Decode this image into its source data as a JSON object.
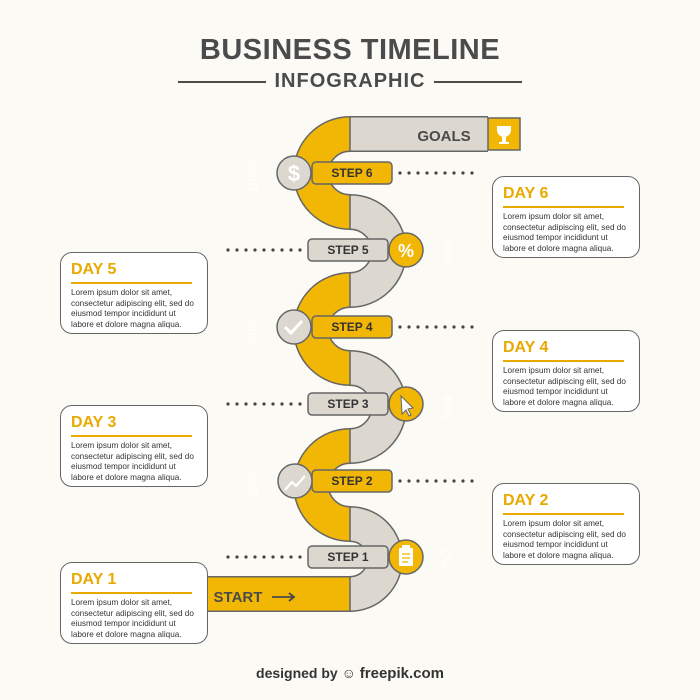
{
  "header": {
    "title": "BUSINESS TIMELINE",
    "subtitle": "INFOGRAPHIC"
  },
  "road": {
    "goals_label": "GOALS",
    "start_label": "START",
    "steps": [
      "STEP 1",
      "STEP 2",
      "STEP 3",
      "STEP 4",
      "STEP 5",
      "STEP 6"
    ],
    "percents": [
      "0%",
      "20%",
      "40%",
      "60%",
      "80%",
      "100%"
    ],
    "icons": [
      "clipboard-icon",
      "chart-icon",
      "cursor-icon",
      "checkmark-icon",
      "percent-icon",
      "dollar-icon"
    ]
  },
  "cards": [
    {
      "day": "DAY 1",
      "text": "Lorem ipsum dolor sit amet, consectetur adipiscing elit, sed do eiusmod tempor incididunt ut labore et dolore magna aliqua."
    },
    {
      "day": "DAY 2",
      "text": "Lorem ipsum dolor sit amet, consectetur adipiscing elit, sed do eiusmod tempor incididunt ut labore et dolore magna aliqua."
    },
    {
      "day": "DAY 3",
      "text": "Lorem ipsum dolor sit amet, consectetur adipiscing elit, sed do eiusmod tempor incididunt ut labore et dolore magna aliqua."
    },
    {
      "day": "DAY 4",
      "text": "Lorem ipsum dolor sit amet, consectetur adipiscing elit, sed do eiusmod tempor incididunt ut labore et dolore magna aliqua."
    },
    {
      "day": "DAY 5",
      "text": "Lorem ipsum dolor sit amet, consectetur adipiscing elit, sed do eiusmod tempor incididunt ut labore et dolore magna aliqua."
    },
    {
      "day": "DAY 6",
      "text": "Lorem ipsum dolor sit amet, consectetur adipiscing elit, sed do eiusmod tempor incididunt ut labore et dolore magna aliqua."
    }
  ],
  "credit": {
    "prefix": "designed by",
    "brand": "freepik.com"
  },
  "colors": {
    "yellow": "#f2b705",
    "grey": "#dcd8cf",
    "outline": "#666666"
  }
}
